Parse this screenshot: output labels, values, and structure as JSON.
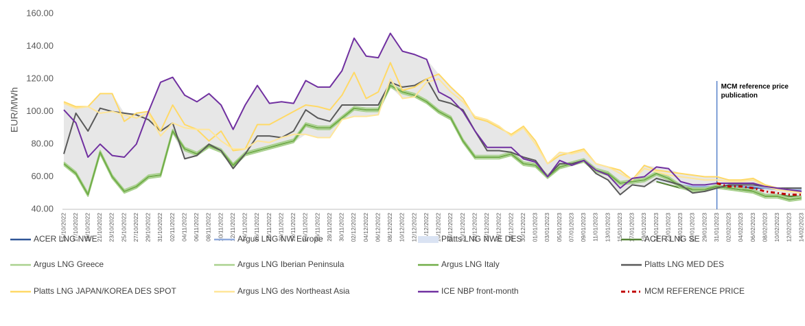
{
  "chart_data": {
    "type": "line",
    "ylabel": "EUR/MWh",
    "ylim": [
      40,
      160
    ],
    "yticks": [
      {
        "value": 40,
        "label": "40.00"
      },
      {
        "value": 60,
        "label": "60.00"
      },
      {
        "value": 80,
        "label": "80.00"
      },
      {
        "value": 100,
        "label": "100.00"
      },
      {
        "value": 120,
        "label": "120.00"
      },
      {
        "value": 140,
        "label": "140.00"
      },
      {
        "value": 160,
        "label": "160.00"
      }
    ],
    "grid": false,
    "range_band_color": "#e7e7e7",
    "annotation": {
      "text": "MCM reference price publication",
      "x": "31/01/2023",
      "color": "#4472c4"
    },
    "categories": [
      "15/10/2022",
      "17/10/2022",
      "19/10/2022",
      "21/10/2022",
      "23/10/2022",
      "25/10/2022",
      "27/10/2022",
      "29/10/2022",
      "31/10/2022",
      "02/11/2022",
      "04/11/2022",
      "06/11/2022",
      "08/11/2022",
      "10/11/2022",
      "12/11/2022",
      "14/11/2022",
      "16/11/2022",
      "18/11/2022",
      "20/11/2022",
      "22/11/2022",
      "24/11/2022",
      "26/11/2022",
      "28/11/2022",
      "30/11/2022",
      "02/12/2022",
      "04/12/2022",
      "06/12/2022",
      "08/12/2022",
      "10/12/2022",
      "12/12/2022",
      "14/12/2022",
      "16/12/2022",
      "18/12/2022",
      "20/12/2022",
      "22/12/2022",
      "24/12/2022",
      "26/12/2022",
      "28/12/2022",
      "30/12/2022",
      "01/01/2023",
      "03/01/2023",
      "05/01/2023",
      "07/01/2023",
      "09/01/2023",
      "11/01/2023",
      "13/01/2023",
      "15/01/2023",
      "17/01/2023",
      "19/01/2023",
      "21/01/2023",
      "23/01/2023",
      "25/01/2023",
      "27/01/2023",
      "29/01/2023",
      "31/01/2023",
      "02/02/2023",
      "04/02/2023",
      "06/02/2023",
      "08/02/2023",
      "10/02/2023",
      "12/02/2023",
      "14/02/2023"
    ],
    "series": [
      {
        "name": "ACER LNG NWE",
        "color": "#2f5597",
        "values": [
          null,
          null,
          null,
          null,
          null,
          null,
          null,
          null,
          null,
          null,
          null,
          null,
          null,
          null,
          null,
          null,
          null,
          null,
          null,
          null,
          null,
          null,
          null,
          null,
          null,
          null,
          null,
          null,
          null,
          null,
          null,
          null,
          null,
          null,
          null,
          null,
          null,
          null,
          null,
          null,
          null,
          null,
          null,
          null,
          null,
          null,
          null,
          null,
          null,
          null,
          null,
          null,
          null,
          null,
          55,
          54,
          54,
          53,
          53,
          53,
          53,
          53
        ]
      },
      {
        "name": "Argus LNG NW Europe",
        "color": "#8faadc",
        "values": [
          null,
          null,
          null,
          null,
          null,
          null,
          null,
          null,
          null,
          null,
          null,
          null,
          null,
          null,
          null,
          null,
          null,
          null,
          null,
          null,
          null,
          null,
          null,
          null,
          null,
          null,
          null,
          null,
          null,
          null,
          null,
          null,
          null,
          null,
          null,
          null,
          null,
          null,
          null,
          null,
          null,
          null,
          null,
          null,
          null,
          null,
          null,
          null,
          null,
          58,
          57,
          55,
          54,
          54,
          55,
          55,
          54,
          54,
          53,
          52,
          52,
          52
        ]
      },
      {
        "name": "Platts LNG NWE DES",
        "color": "#dae3f3",
        "legend_marker": "area",
        "values": [
          null,
          null,
          null,
          null,
          null,
          null,
          null,
          null,
          null,
          null,
          null,
          null,
          null,
          null,
          null,
          null,
          null,
          null,
          null,
          null,
          null,
          null,
          null,
          null,
          null,
          null,
          null,
          null,
          null,
          null,
          null,
          null,
          null,
          null,
          null,
          null,
          null,
          null,
          null,
          null,
          null,
          null,
          null,
          null,
          null,
          null,
          null,
          null,
          null,
          58,
          57,
          56,
          55,
          55,
          55,
          56,
          55,
          55,
          54,
          53,
          53,
          53
        ]
      },
      {
        "name": "ACER LNG SE",
        "color": "#548235",
        "values": [
          null,
          null,
          null,
          null,
          null,
          null,
          null,
          null,
          null,
          null,
          null,
          null,
          null,
          null,
          null,
          null,
          null,
          null,
          null,
          null,
          null,
          null,
          null,
          null,
          null,
          null,
          null,
          null,
          null,
          null,
          null,
          null,
          null,
          null,
          null,
          null,
          null,
          null,
          null,
          null,
          null,
          null,
          null,
          null,
          null,
          null,
          null,
          null,
          null,
          57,
          55,
          53,
          53,
          53,
          54,
          53,
          52,
          52,
          49,
          49,
          48,
          48
        ]
      },
      {
        "name": "Argus LNG Greece",
        "color": "#a9d18e",
        "values": [
          69,
          63,
          50,
          76,
          61,
          52,
          55,
          61,
          62,
          89,
          78,
          75,
          80,
          77,
          68,
          75,
          77,
          79,
          81,
          83,
          93,
          91,
          91,
          97,
          103,
          102,
          102,
          117,
          113,
          111,
          107,
          101,
          97,
          83,
          73,
          73,
          73,
          75,
          69,
          68,
          61,
          67,
          69,
          71,
          65,
          63,
          57,
          58,
          59,
          63,
          60,
          55,
          53,
          53,
          55,
          54,
          53,
          52,
          49,
          49,
          47,
          48
        ]
      },
      {
        "name": "Argus LNG Iberian Peninsula",
        "color": "#a9d18e",
        "values": [
          67,
          61,
          48,
          74,
          59,
          50,
          53,
          59,
          60,
          87,
          76,
          73,
          78,
          75,
          66,
          73,
          75,
          77,
          79,
          81,
          91,
          89,
          89,
          95,
          101,
          100,
          100,
          115,
          111,
          109,
          105,
          99,
          95,
          81,
          71,
          71,
          71,
          73,
          67,
          66,
          59,
          65,
          67,
          69,
          63,
          61,
          55,
          56,
          57,
          61,
          58,
          53,
          51,
          51,
          53,
          52,
          51,
          50,
          47,
          47,
          45,
          46
        ]
      },
      {
        "name": "Argus LNG Italy",
        "color": "#70ad47",
        "values": [
          68,
          62,
          49,
          75,
          60,
          51,
          54,
          60,
          61,
          88,
          77,
          74,
          79,
          76,
          67,
          74,
          76,
          78,
          80,
          82,
          92,
          90,
          90,
          96,
          102,
          101,
          101,
          116,
          112,
          110,
          106,
          100,
          96,
          82,
          72,
          72,
          72,
          74,
          68,
          67,
          60,
          66,
          68,
          70,
          64,
          62,
          56,
          57,
          58,
          62,
          59,
          54,
          52,
          52,
          54,
          53,
          52,
          51,
          48,
          48,
          46,
          47
        ]
      },
      {
        "name": "Platts LNG MED DES",
        "color": "#595959",
        "values": [
          74,
          99,
          88,
          102,
          100,
          99,
          98,
          95,
          88,
          93,
          71,
          73,
          80,
          76,
          65,
          74,
          85,
          85,
          84,
          88,
          101,
          96,
          94,
          104,
          104,
          104,
          104,
          118,
          115,
          116,
          120,
          107,
          105,
          101,
          88,
          76,
          76,
          75,
          72,
          70,
          60,
          68,
          68,
          70,
          62,
          58,
          49,
          55,
          54,
          59,
          57,
          55,
          50,
          51,
          53,
          55,
          55,
          55,
          54,
          53,
          53,
          53
        ]
      },
      {
        "name": "Platts LNG JAPAN/KOREA DES SPOT",
        "color": "#ffd966",
        "values": [
          106,
          103,
          103,
          111,
          111,
          94,
          99,
          100,
          88,
          104,
          92,
          89,
          82,
          88,
          76,
          77,
          92,
          92,
          96,
          100,
          104,
          103,
          101,
          110,
          124,
          108,
          112,
          130,
          113,
          115,
          120,
          123,
          115,
          108,
          96,
          94,
          90,
          86,
          91,
          82,
          68,
          73,
          75,
          77,
          68,
          66,
          64,
          58,
          67,
          64,
          63,
          62,
          61,
          60,
          60,
          58,
          58,
          59,
          55,
          53,
          52,
          50
        ]
      },
      {
        "name": "Argus LNG des Northeast Asia",
        "color": "#ffe699",
        "values": [
          105,
          102,
          103,
          99,
          100,
          98,
          96,
          99,
          85,
          93,
          90,
          89,
          89,
          82,
          77,
          77,
          82,
          81,
          84,
          86,
          86,
          84,
          84,
          95,
          97,
          97,
          98,
          120,
          108,
          109,
          118,
          120,
          112,
          106,
          97,
          95,
          91,
          85,
          90,
          80,
          68,
          75,
          74,
          76,
          68,
          66,
          62,
          58,
          65,
          63,
          61,
          60,
          59,
          58,
          58,
          57,
          57,
          58,
          54,
          52,
          51,
          50
        ]
      },
      {
        "name": "ICE NBP front-month",
        "color": "#7030a0",
        "values": [
          101,
          93,
          72,
          80,
          73,
          72,
          80,
          100,
          118,
          121,
          110,
          106,
          111,
          104,
          89,
          104,
          116,
          105,
          106,
          105,
          119,
          115,
          115,
          125,
          145,
          134,
          133,
          148,
          137,
          135,
          132,
          112,
          108,
          100,
          88,
          78,
          78,
          78,
          71,
          69,
          60,
          70,
          67,
          70,
          64,
          61,
          53,
          59,
          60,
          66,
          65,
          57,
          55,
          55,
          56,
          56,
          56,
          56,
          54,
          53,
          52,
          51
        ]
      },
      {
        "name": "MCM REFERENCE PRICE",
        "color": "#c00000",
        "dashed": true,
        "values": [
          null,
          null,
          null,
          null,
          null,
          null,
          null,
          null,
          null,
          null,
          null,
          null,
          null,
          null,
          null,
          null,
          null,
          null,
          null,
          null,
          null,
          null,
          null,
          null,
          null,
          null,
          null,
          null,
          null,
          null,
          null,
          null,
          null,
          null,
          null,
          null,
          null,
          null,
          null,
          null,
          null,
          null,
          null,
          null,
          null,
          null,
          null,
          null,
          null,
          null,
          null,
          null,
          null,
          null,
          56,
          54,
          54,
          53,
          51,
          50,
          49,
          49
        ]
      }
    ]
  }
}
